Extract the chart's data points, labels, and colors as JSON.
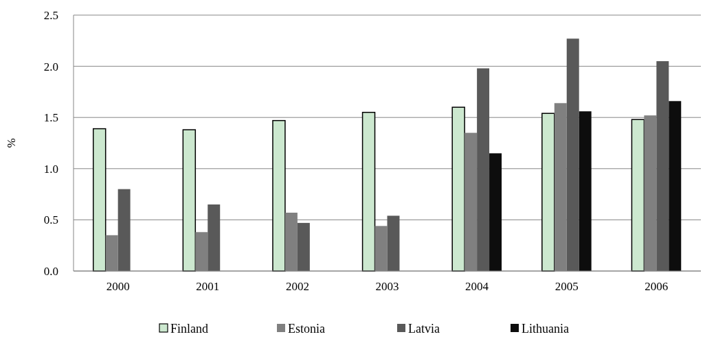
{
  "chart_data": {
    "type": "bar",
    "ylabel": "%",
    "categories": [
      "2000",
      "2001",
      "2002",
      "2003",
      "2004",
      "2005",
      "2006"
    ],
    "series": [
      {
        "name": "Finland",
        "color": "#cce8cf",
        "values": [
          1.39,
          1.38,
          1.47,
          1.55,
          1.6,
          1.54,
          1.48
        ]
      },
      {
        "name": "Estonia",
        "color": "#808080",
        "values": [
          0.35,
          0.38,
          0.57,
          0.44,
          1.35,
          1.64,
          1.52
        ]
      },
      {
        "name": "Latvia",
        "color": "#595959",
        "values": [
          0.8,
          0.65,
          0.47,
          0.54,
          1.98,
          2.27,
          2.05
        ]
      },
      {
        "name": "Lithuania",
        "color": "#0d0d0d",
        "values": [
          null,
          null,
          null,
          null,
          1.15,
          1.56,
          1.66
        ]
      }
    ],
    "ylim": [
      0,
      2.5
    ],
    "yticks": [
      {
        "value": 0,
        "label": "0.0"
      },
      {
        "value": 0.5,
        "label": "0.5"
      },
      {
        "value": 1,
        "label": "1.0"
      },
      {
        "value": 1.5,
        "label": "1.5"
      },
      {
        "value": 2,
        "label": "2.0"
      },
      {
        "value": 2.5,
        "label": "2.5"
      }
    ],
    "grid": "y",
    "legend": "bottom"
  }
}
